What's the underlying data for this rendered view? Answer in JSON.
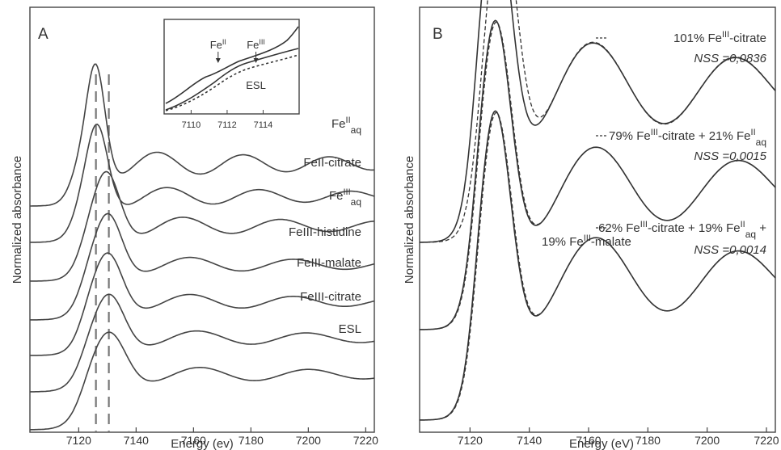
{
  "chart_data": [
    {
      "type": "line",
      "panel_label": "A",
      "xlabel": "Energy (ev)",
      "ylabel": "Normalized absorbance",
      "xlim": [
        7103,
        7223
      ],
      "x_ticks": [
        7120,
        7140,
        7160,
        7180,
        7200,
        7220
      ],
      "reference_lines": [
        7126,
        7130.5
      ],
      "series": [
        {
          "name": "FeII aq",
          "label_main": "Fe",
          "label_sup": "II",
          "label_sub": "aq"
        },
        {
          "name": "FeII-citrate",
          "label_main": "FeII-citrate"
        },
        {
          "name": "FeIII aq",
          "label_main": "Fe",
          "label_sup": "III",
          "label_sub": "aq"
        },
        {
          "name": "FeIII-histidine",
          "label_main": "FeIII-histidine"
        },
        {
          "name": "FeIII-malate",
          "label_main": "FeIII-malate"
        },
        {
          "name": "FeIII-citrate",
          "label_main": "FeIII-citrate"
        },
        {
          "name": "ESL",
          "label_main": "ESL"
        }
      ],
      "inset": {
        "xlim": [
          7108.5,
          7116
        ],
        "x_ticks": [
          7110,
          7112,
          7114
        ],
        "annotations": [
          {
            "main": "Fe",
            "sup": "II",
            "x": 7111.5
          },
          {
            "main": "Fe",
            "sup": "III",
            "x": 7113.6
          }
        ],
        "curve_label": "ESL"
      }
    },
    {
      "type": "line",
      "panel_label": "B",
      "xlabel": "Energy (eV)",
      "ylabel": "Normalized absorbance",
      "xlim": [
        7103,
        7223
      ],
      "x_ticks": [
        7120,
        7140,
        7160,
        7180,
        7200,
        7220
      ],
      "fits": [
        {
          "line1": [
            {
              "t": "101% Fe"
            },
            {
              "t": "III",
              "sup": true
            },
            {
              "t": "-citrate"
            }
          ],
          "line2": [],
          "nss": "NSS =0,0836"
        },
        {
          "line1": [
            {
              "t": "79% Fe"
            },
            {
              "t": "III",
              "sup": true
            },
            {
              "t": "-citrate + 21% Fe"
            },
            {
              "t": "II",
              "sup": true
            },
            {
              "t": "aq",
              "sub": true
            }
          ],
          "line2": [],
          "nss": "NSS =0,0015"
        },
        {
          "line1": [
            {
              "t": "62% Fe"
            },
            {
              "t": "III",
              "sup": true
            },
            {
              "t": "-citrate + 19% Fe"
            },
            {
              "t": "II",
              "sup": true
            },
            {
              "t": "aq",
              "sub": true
            },
            {
              "t": " +"
            }
          ],
          "line2": [
            {
              "t": "19% Fe"
            },
            {
              "t": "III",
              "sup": true
            },
            {
              "t": "-malate"
            }
          ],
          "nss": "NSS =0,0014"
        }
      ]
    }
  ]
}
